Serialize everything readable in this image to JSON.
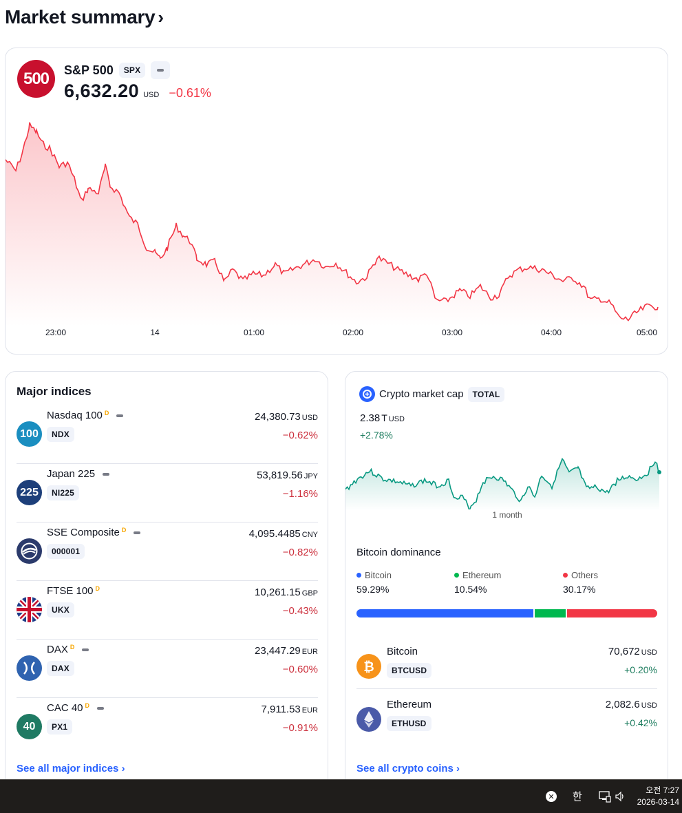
{
  "title": "Market summary",
  "title_chevron": "›",
  "spx": {
    "logo_text": "500",
    "name": "S&P 500",
    "ticker": "SPX",
    "price": "6,632.20",
    "currency": "USD",
    "change": "−0.61%",
    "x_labels": [
      "23:00",
      "14",
      "01:00",
      "02:00",
      "03:00",
      "04:00",
      "05:00"
    ],
    "accent": "#f23645"
  },
  "indices": {
    "heading": "Major indices",
    "items": [
      {
        "logo": "100",
        "name": "Nasdaq 100",
        "delayed": "D",
        "ticker": "NDX",
        "price": "24,380.73",
        "currency": "USD",
        "change": "−0.62%",
        "color": "#1a8ec0"
      },
      {
        "logo": "225",
        "name": "Japan 225",
        "delayed": "",
        "ticker": "NI225",
        "price": "53,819.56",
        "currency": "JPY",
        "change": "−1.16%",
        "color": "#1d3f7a"
      },
      {
        "logo": "",
        "name": "SSE Composite",
        "delayed": "D",
        "ticker": "000001",
        "price": "4,095.4485",
        "currency": "CNY",
        "change": "−0.82%",
        "color": "#2b3a6b"
      },
      {
        "logo": "",
        "name": "FTSE 100",
        "delayed": "D",
        "ticker": "UKX",
        "price": "10,261.15",
        "currency": "GBP",
        "change": "−0.43%",
        "color": "#1f3c88"
      },
      {
        "logo": "",
        "name": "DAX",
        "delayed": "D",
        "ticker": "DAX",
        "price": "23,447.29",
        "currency": "EUR",
        "change": "−0.60%",
        "color": "#2f63b0"
      },
      {
        "logo": "40",
        "name": "CAC 40",
        "delayed": "D",
        "ticker": "PX1",
        "price": "7,911.53",
        "currency": "EUR",
        "change": "−0.91%",
        "color": "#1f7a63"
      }
    ],
    "see_all": "See all major indices ›"
  },
  "crypto": {
    "name": "Crypto market cap",
    "ticker": "TOTAL",
    "value": "2.38",
    "value_unit": "T",
    "currency": "USD",
    "change": "+2.78%",
    "period": "1 month",
    "dominance_title": "Bitcoin dominance",
    "dominance": [
      {
        "label": "Bitcoin",
        "pct": "59.29%",
        "value": 59.29,
        "color": "#2962ff"
      },
      {
        "label": "Ethereum",
        "pct": "10.54%",
        "value": 10.54,
        "color": "#00b84f"
      },
      {
        "label": "Others",
        "pct": "30.17%",
        "value": 30.17,
        "color": "#f23645"
      }
    ],
    "coins": [
      {
        "name": "Bitcoin",
        "ticker": "BTCUSD",
        "price": "70,672",
        "currency": "USD",
        "change": "+0.20%",
        "icon": "bitcoin-icon"
      },
      {
        "name": "Ethereum",
        "ticker": "ETHUSD",
        "price": "2,082.6",
        "currency": "USD",
        "change": "+0.42%",
        "icon": "ethereum-icon"
      }
    ],
    "see_all": "See all crypto coins ›",
    "accent": "#089981"
  },
  "taskbar": {
    "ime": "한",
    "time": "오전 7:27",
    "date": "2026-03-14"
  }
}
